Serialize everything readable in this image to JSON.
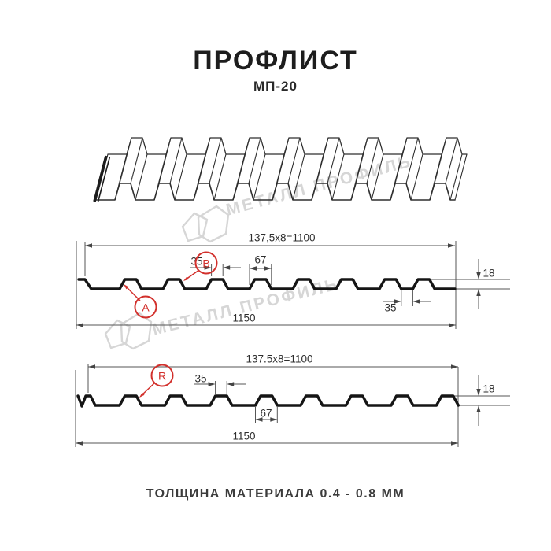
{
  "header": {
    "title": "ПРОФЛИСТ",
    "subtitle": "МП-20"
  },
  "watermark": {
    "brand": "МЕТАЛЛ ПРОФИЛЬ"
  },
  "footer": {
    "thickness_note": "ТОЛЩИНА МАТЕРИАЛА 0.4 - 0.8 ММ"
  },
  "colors": {
    "accent_red": "#d2302c",
    "line": "#555555",
    "profile": "#151515",
    "watermark": "#d6d6d6"
  },
  "diagram_top": {
    "label_a": "A",
    "label_b": "B",
    "dim_working_width": "137,5x8=1100",
    "dim_rib_top": "35",
    "dim_rib_base": "67",
    "dim_height": "18",
    "dim_end_valley": "35",
    "dim_total_width": "1150"
  },
  "diagram_bottom": {
    "label_r": "R",
    "dim_working_width": "137.5x8=1100",
    "dim_rib_top": "35",
    "dim_rib_base": "67",
    "dim_height": "18",
    "dim_total_width": "1150"
  }
}
